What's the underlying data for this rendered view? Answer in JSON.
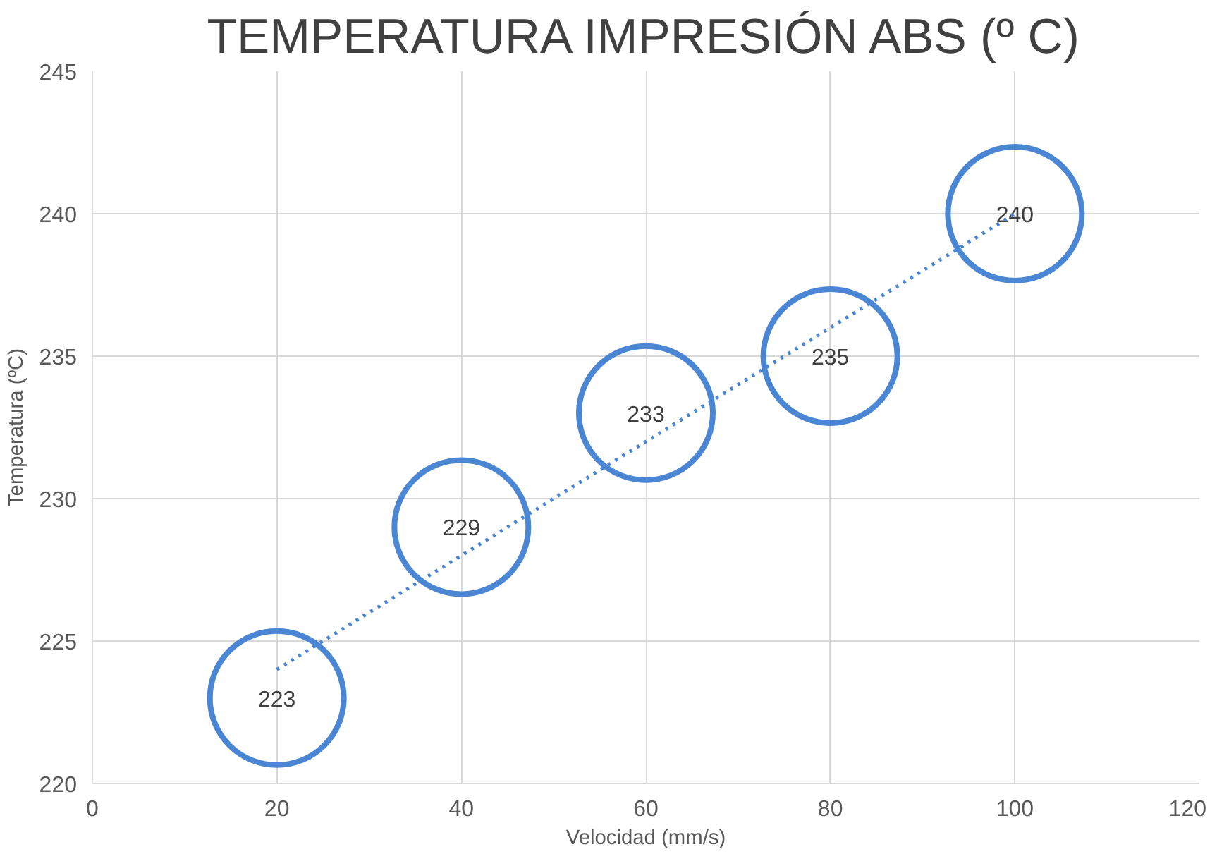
{
  "chart_data": {
    "type": "bubble",
    "title": "TEMPERATURA IMPRESIÓN ABS (º C)",
    "xlabel": "Velocidad (mm/s)",
    "ylabel": "Temperatura (ºC)",
    "xlim": [
      0,
      120
    ],
    "xticks": [
      0,
      20,
      40,
      60,
      80,
      100,
      120
    ],
    "ylim": [
      220,
      245
    ],
    "yticks": [
      220,
      225,
      230,
      235,
      240,
      245
    ],
    "grid": true,
    "series": [
      {
        "color": "#4a86d4",
        "x": [
          20,
          40,
          60,
          80,
          100
        ],
        "values": [
          223,
          229,
          233,
          235,
          240
        ],
        "sizes": [
          1,
          1,
          1,
          1,
          1
        ],
        "value_labels": [
          "223",
          "229",
          "233",
          "235",
          "240"
        ]
      },
      {
        "type": "line",
        "color": "#4a86d4",
        "line_style": "dotted",
        "marker": "none",
        "x": [
          20,
          100
        ],
        "values": [
          224,
          240
        ]
      }
    ]
  }
}
